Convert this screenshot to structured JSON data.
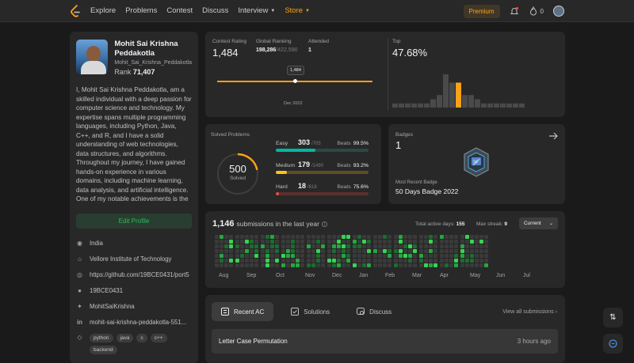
{
  "nav": {
    "items": [
      "Explore",
      "Problems",
      "Contest",
      "Discuss",
      "Interview",
      "Store"
    ],
    "premium": "Premium",
    "notifications_count": "0"
  },
  "profile": {
    "name": "Mohit Sai Krishna Peddakotla",
    "username": "Mohit_Sai_Krishna_Peddakotla",
    "rank_label": "Rank",
    "rank_value": "71,407",
    "bio": "I, Mohit Sai Krishna Peddakotla, am a skilled individual with a deep passion for computer science and technology. My expertise spans multiple programming languages, including Python, Java, C++, and R, and I have a solid understanding of web technologies, data structures, and algorithms. Throughout my journey, I have gained hands-on experience in various domains, including machine learning, data analysis, and artificial intelligence. One of my notable achievements is the development of an ensemble model for",
    "edit_label": "Edit Profile",
    "location": "India",
    "school": "Vellore Institute of Technology",
    "website": "https://github.com/19BCE0431/port5",
    "github": "19BCE0431",
    "twitter": "MohitSaiKrishna",
    "linkedin": "mohit-sai-krishna-peddakotla-551...",
    "skills": [
      "python",
      "java",
      "c",
      "c++",
      "backend"
    ]
  },
  "contest": {
    "rating_label": "Contest Rating",
    "rating": "1,484",
    "global_label": "Global Ranking",
    "global_rank": "198,286",
    "global_total": "/422,590",
    "attended_label": "Attended",
    "attended": "1",
    "tooltip": "1,484",
    "date": "Dec 2022",
    "top_label": "Top",
    "top_value": "47.68%"
  },
  "histogram": {
    "values": [
      1,
      1,
      1,
      1,
      1,
      1,
      2,
      3,
      8,
      6,
      6,
      3,
      3,
      2,
      1,
      1,
      1,
      1,
      1,
      1,
      1
    ],
    "highlight_index": 10
  },
  "solved": {
    "label": "Solved Problems",
    "total": "500",
    "total_label": "Solved",
    "easy": {
      "name": "Easy",
      "count": "303",
      "total": "/705",
      "beats_label": "Beats",
      "beats": "99.5%",
      "fraction": 0.43,
      "color": "#00b8a3",
      "track": "#2a4a45"
    },
    "medium": {
      "name": "Medium",
      "count": "179",
      "total": "/1490",
      "beats_label": "Beats",
      "beats": "93.2%",
      "fraction": 0.12,
      "color": "#ffc01e",
      "track": "#5e4e25"
    },
    "hard": {
      "name": "Hard",
      "count": "18",
      "total": "/618",
      "beats_label": "Beats",
      "beats": "75.6%",
      "fraction": 0.03,
      "color": "#ef4743",
      "track": "#5a302e"
    }
  },
  "badges": {
    "label": "Badges",
    "count": "1",
    "recent_label": "Most Recent Badge",
    "recent_name": "50 Days Badge 2022",
    "badge_text": "50"
  },
  "submissions": {
    "count": "1,146",
    "text": "submissions in the last year",
    "active_label": "Total active days:",
    "active_days": "155",
    "streak_label": "Max streak:",
    "max_streak": "9",
    "dropdown": "Current",
    "months": [
      "Aug",
      "Sep",
      "Oct",
      "Nov",
      "Dec",
      "Jan",
      "Feb",
      "Mar",
      "Apr",
      "May",
      "Jun",
      "Jul"
    ]
  },
  "recent": {
    "tabs": [
      "Recent AC",
      "Solutions",
      "Discuss"
    ],
    "view_all": "View all submissions",
    "items": [
      {
        "title": "Letter Case Permutation",
        "time": "3 hours ago"
      }
    ]
  }
}
